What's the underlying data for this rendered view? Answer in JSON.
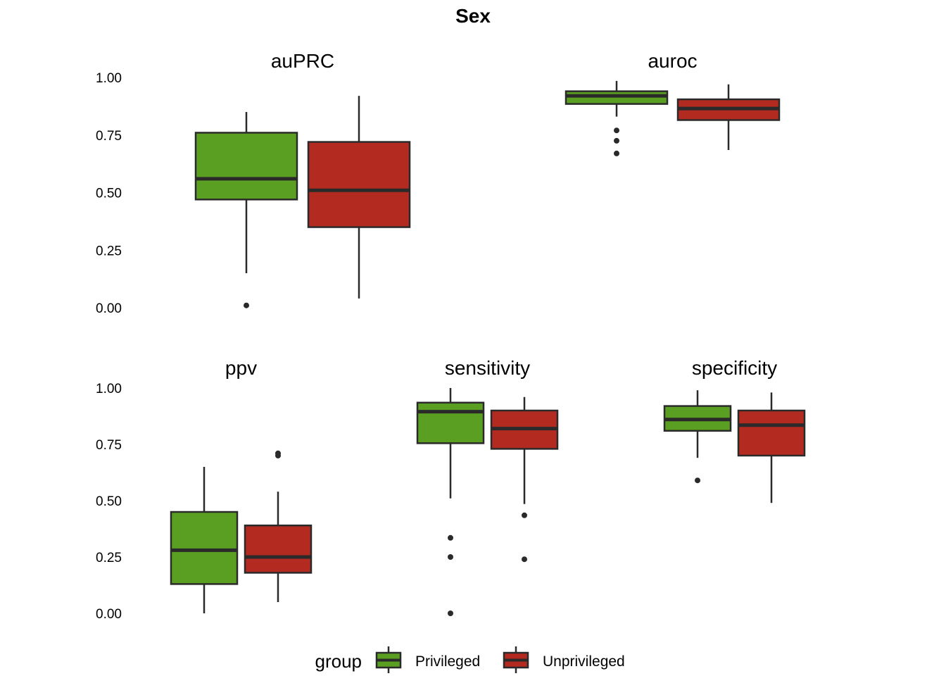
{
  "chart_data": {
    "type": "box",
    "title": "Sex",
    "ylim": [
      0,
      1
    ],
    "y_ticks": [
      "0.00",
      "0.25",
      "0.50",
      "0.75",
      "1.00"
    ],
    "legend": {
      "title": "group",
      "position": "bottom",
      "entries": [
        {
          "label": "Privileged",
          "color": "#5a9f22"
        },
        {
          "label": "Unprivileged",
          "color": "#b22a20"
        }
      ]
    },
    "grid": false,
    "panels": [
      {
        "name": "auPRC",
        "groups": [
          {
            "group": "Privileged",
            "whisker_low": 0.15,
            "q1": 0.47,
            "median": 0.56,
            "q3": 0.76,
            "whisker_high": 0.85,
            "outliers": [
              0.01
            ]
          },
          {
            "group": "Unprivileged",
            "whisker_low": 0.04,
            "q1": 0.35,
            "median": 0.51,
            "q3": 0.72,
            "whisker_high": 0.92,
            "outliers": []
          }
        ]
      },
      {
        "name": "auroc",
        "groups": [
          {
            "group": "Privileged",
            "whisker_low": 0.83,
            "q1": 0.885,
            "median": 0.92,
            "q3": 0.94,
            "whisker_high": 0.985,
            "outliers": [
              0.77,
              0.725,
              0.67
            ]
          },
          {
            "group": "Unprivileged",
            "whisker_low": 0.685,
            "q1": 0.815,
            "median": 0.865,
            "q3": 0.905,
            "whisker_high": 0.97,
            "outliers": []
          }
        ]
      },
      {
        "name": "ppv",
        "groups": [
          {
            "group": "Privileged",
            "whisker_low": 0.0,
            "q1": 0.13,
            "median": 0.28,
            "q3": 0.45,
            "whisker_high": 0.65,
            "outliers": []
          },
          {
            "group": "Unprivileged",
            "whisker_low": 0.05,
            "q1": 0.18,
            "median": 0.25,
            "q3": 0.39,
            "whisker_high": 0.54,
            "outliers": [
              0.7,
              0.71
            ]
          }
        ]
      },
      {
        "name": "sensitivity",
        "groups": [
          {
            "group": "Privileged",
            "whisker_low": 0.51,
            "q1": 0.755,
            "median": 0.895,
            "q3": 0.935,
            "whisker_high": 1.0,
            "outliers": [
              0.335,
              0.25,
              0.0
            ]
          },
          {
            "group": "Unprivileged",
            "whisker_low": 0.485,
            "q1": 0.73,
            "median": 0.82,
            "q3": 0.9,
            "whisker_high": 0.96,
            "outliers": [
              0.435,
              0.24
            ]
          }
        ]
      },
      {
        "name": "specificity",
        "groups": [
          {
            "group": "Privileged",
            "whisker_low": 0.69,
            "q1": 0.81,
            "median": 0.86,
            "q3": 0.92,
            "whisker_high": 0.99,
            "outliers": [
              0.59
            ]
          },
          {
            "group": "Unprivileged",
            "whisker_low": 0.49,
            "q1": 0.7,
            "median": 0.835,
            "q3": 0.9,
            "whisker_high": 0.98,
            "outliers": []
          }
        ]
      }
    ]
  }
}
